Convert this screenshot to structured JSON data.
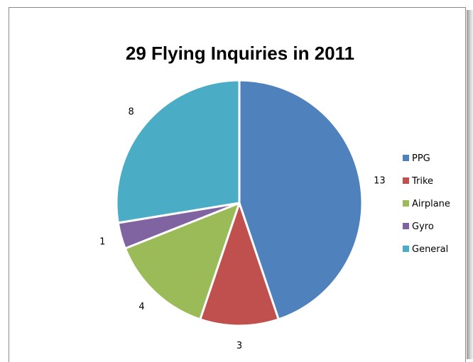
{
  "chart_data": {
    "type": "pie",
    "title": "29 Flying Inquiries in 2011",
    "categories": [
      "PPG",
      "Trike",
      "Airplane",
      "Gyro",
      "General"
    ],
    "values": [
      13,
      3,
      4,
      1,
      8
    ],
    "colors": [
      "#4f81bd",
      "#c0504d",
      "#9bbb59",
      "#8064a2",
      "#4bacc6"
    ],
    "legend_position": "right",
    "data_labels": [
      "13",
      "3",
      "4",
      "1",
      "8"
    ]
  }
}
